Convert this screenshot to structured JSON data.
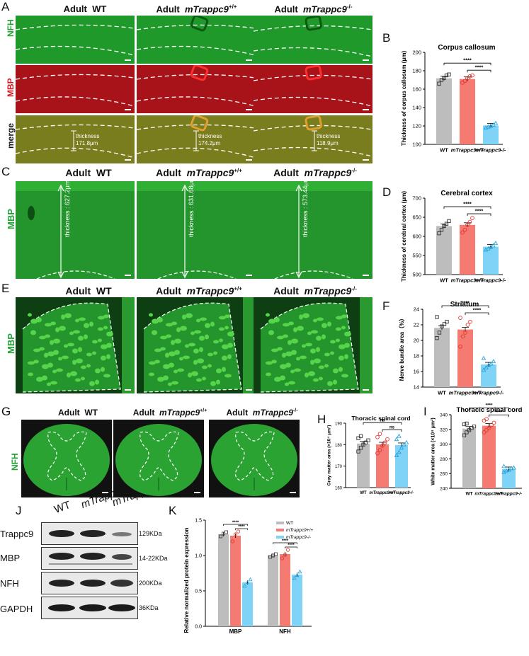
{
  "panels": {
    "A": "A",
    "B": "B",
    "C": "C",
    "D": "D",
    "E": "E",
    "F": "F",
    "G": "G",
    "H": "H",
    "I": "I",
    "J": "J",
    "K": "K"
  },
  "groups": {
    "adult_prefix": "Adult",
    "wt": "WT",
    "het": "mTrappc9",
    "het_sup": "+/+",
    "ko": "mTrappc9",
    "ko_sup": "-/-"
  },
  "panel_a": {
    "rows": [
      "NFH",
      "MBP",
      "merge"
    ],
    "thickness_label": "thickness",
    "thickness_values": [
      "171.8μm",
      "174.2μm",
      "118.9μm"
    ]
  },
  "panel_c": {
    "row": "MBP",
    "thickness_texts": [
      "thickness : 627.2μm",
      "thickness : 631.68μm",
      "thickness : 573.44μm"
    ]
  },
  "panel_e": {
    "row": "MBP"
  },
  "panel_g": {
    "row": "NFH"
  },
  "panel_j": {
    "lanes": [
      "WT",
      "mTrappc9+/+",
      "mTrappc9-/-"
    ],
    "proteins": [
      "Trappc9",
      "MBP",
      "NFH",
      "GAPDH"
    ],
    "sizes": [
      "129KDa",
      "14-22KDa",
      "200KDa",
      "36KDa"
    ]
  },
  "colors": {
    "wt": "#bdbdbd",
    "het": "#f47a72",
    "ko": "#7fd3f7",
    "green_tissue": "#1f9a2a",
    "red_tissue": "#a8131a"
  },
  "chart_data": [
    {
      "id": "B",
      "type": "bar",
      "title": "Corpus callosum",
      "ylabel": "Thickness of corpus callosum (μm)",
      "ylim": [
        100,
        200
      ],
      "yticks": [
        100,
        120,
        140,
        160,
        180,
        200
      ],
      "categories": [
        "WT",
        "mTrappc9+/+",
        "mTrappc9-/-"
      ],
      "values": [
        171.8,
        171,
        120.5
      ],
      "significance": [
        {
          "pair": [
            "WT",
            "mTrappc9-/-"
          ],
          "label": "****"
        },
        {
          "pair": [
            "mTrappc9+/+",
            "mTrappc9-/-"
          ],
          "label": "****"
        }
      ],
      "points": [
        [
          166,
          170,
          172,
          175,
          176
        ],
        [
          167,
          169,
          172,
          174,
          175
        ],
        [
          118,
          119,
          120,
          121,
          123
        ]
      ]
    },
    {
      "id": "D",
      "type": "bar",
      "title": "Cerebral cortex",
      "ylabel": "Thickness of cerebral cortex (μm)",
      "ylim": [
        500,
        700
      ],
      "yticks": [
        500,
        550,
        600,
        650,
        700
      ],
      "categories": [
        "WT",
        "mTrappc9+/+",
        "mTrappc9-/-"
      ],
      "values": [
        627,
        630,
        573
      ],
      "significance": [
        {
          "pair": [
            "WT",
            "mTrappc9-/-"
          ],
          "label": "****"
        },
        {
          "pair": [
            "mTrappc9+/+",
            "mTrappc9-/-"
          ],
          "label": "****"
        }
      ],
      "points": [
        [
          608,
          617,
          627,
          633,
          640
        ],
        [
          610,
          617,
          630,
          638,
          648
        ],
        [
          565,
          568,
          572,
          576,
          582
        ]
      ]
    },
    {
      "id": "F",
      "type": "bar",
      "title": "Striatum",
      "ylabel": "Nerve bundle area（%）",
      "ylim": [
        14,
        24
      ],
      "yticks": [
        14,
        16,
        18,
        20,
        22,
        24
      ],
      "categories": [
        "WT",
        "mTrappc9+/+",
        "mTrappc9-/-"
      ],
      "values": [
        21.6,
        21.4,
        16.9
      ],
      "significance": [
        {
          "pair": [
            "WT",
            "mTrappc9-/-"
          ],
          "label": "****"
        },
        {
          "pair": [
            "mTrappc9+/+",
            "mTrappc9-/-"
          ],
          "label": "****"
        }
      ],
      "points": [
        [
          20.3,
          21.0,
          21.8,
          22.1,
          22.4,
          23.0
        ],
        [
          19.2,
          20.5,
          21.0,
          22.0,
          22.4,
          22.9
        ],
        [
          16.2,
          16.5,
          16.8,
          17.0,
          17.3,
          17.7
        ]
      ]
    },
    {
      "id": "H",
      "type": "bar",
      "title": "Thoracic spinal cord",
      "ylabel": "Gray  matter area (×10⁴ μm²)",
      "ylim": [
        160,
        190
      ],
      "yticks": [
        160,
        170,
        180,
        190
      ],
      "categories": [
        "WT",
        "mTrappc9+/+",
        "mTrappc9-/-"
      ],
      "values": [
        180.5,
        180.1,
        179.8
      ],
      "significance": [
        {
          "pair": [
            "WT",
            "mTrappc9-/-"
          ],
          "label": "ns"
        },
        {
          "pair": [
            "mTrappc9+/+",
            "mTrappc9-/-"
          ],
          "label": "ns"
        }
      ],
      "points": [
        [
          176.8,
          178.5,
          180,
          181,
          182,
          183,
          184
        ],
        [
          176,
          177.5,
          179.5,
          181,
          182.5,
          183.5,
          185
        ],
        [
          175,
          176.5,
          178.5,
          180,
          181,
          182.5,
          184
        ]
      ]
    },
    {
      "id": "I",
      "type": "bar",
      "title": "Thoracic spinal cord",
      "ylabel": "White  matter area (×10⁴ μm²)",
      "ylim": [
        240,
        340
      ],
      "yticks": [
        240,
        260,
        280,
        300,
        320,
        340
      ],
      "categories": [
        "WT",
        "mTrappc9+/+",
        "mTrappc9-/-"
      ],
      "values": [
        321,
        325,
        266
      ],
      "significance": [
        {
          "pair": [
            "WT",
            "mTrappc9-/-"
          ],
          "label": "****"
        },
        {
          "pair": [
            "mTrappc9+/+",
            "mTrappc9-/-"
          ],
          "label": "****"
        }
      ],
      "points": [
        [
          312,
          316,
          319,
          322,
          324,
          327,
          328
        ],
        [
          316,
          319,
          322,
          326,
          329,
          332,
          334
        ],
        [
          262,
          264,
          265,
          267,
          268,
          270
        ]
      ]
    },
    {
      "id": "K",
      "type": "bar",
      "ylabel": "Relative normalized protein expression",
      "ylim": [
        0,
        1.5
      ],
      "yticks": [
        0.0,
        0.5,
        1.0,
        1.5
      ],
      "categories": [
        "MBP",
        "NFH"
      ],
      "series": [
        {
          "name": "WT",
          "values": [
            1.3,
            1.0
          ],
          "points": [
            [
              1.27,
              1.31,
              1.33
            ],
            [
              0.98,
              1.0,
              1.02
            ]
          ]
        },
        {
          "name": "mTrappc9+/+",
          "values": [
            1.28,
            1.02
          ],
          "points": [
            [
              1.2,
              1.3,
              1.34
            ],
            [
              0.96,
              1.01,
              1.08
            ]
          ]
        },
        {
          "name": "mTrappc9-/-",
          "values": [
            0.62,
            0.73
          ],
          "points": [
            [
              0.57,
              0.62,
              0.66
            ],
            [
              0.68,
              0.72,
              0.77
            ]
          ]
        }
      ],
      "legend": [
        "WT",
        "mTrappc9+/+",
        "mTrappc9-/-"
      ],
      "legend_placement": "top-right",
      "significance_label": "****"
    }
  ]
}
